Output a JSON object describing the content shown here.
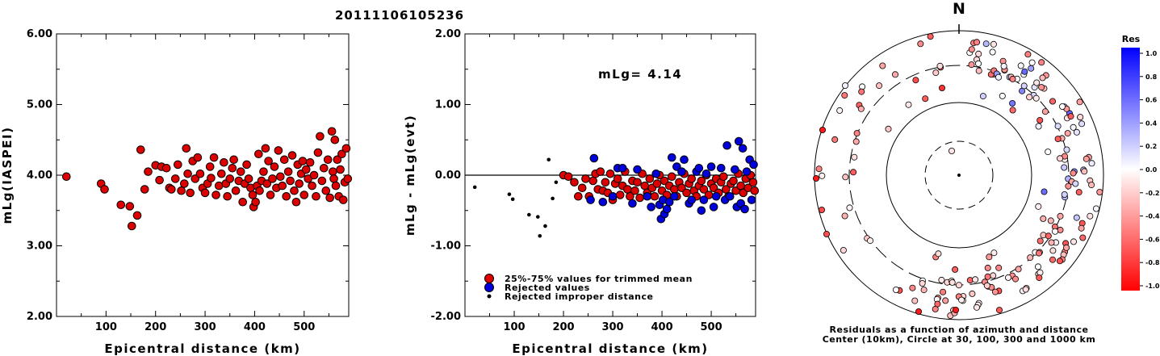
{
  "title": "20111106105236",
  "left_panel": {
    "ylabel": "mLg(IASPEI)",
    "xlabel": "Epicentral distance (km)",
    "yticks": [
      "2.00",
      "3.00",
      "4.00",
      "5.00",
      "6.00"
    ],
    "xticks": [
      "100",
      "200",
      "300",
      "400",
      "500"
    ]
  },
  "middle_panel": {
    "ylabel": "mLg - mLg(evt)",
    "xlabel": "Epicentral distance (km)",
    "yticks": [
      "-2.00",
      "-1.00",
      "0.00",
      "1.00",
      "2.00"
    ],
    "xticks": [
      "100",
      "200",
      "300",
      "400",
      "500"
    ],
    "annotation": "mLg= 4.14",
    "legend": [
      {
        "label": "25%-75% values for trimmed mean",
        "color": "#dd0000"
      },
      {
        "label": "Rejected values",
        "color": "#0000dd"
      },
      {
        "label": "Rejected improper distance",
        "color": "#000000"
      }
    ]
  },
  "polar_panel": {
    "north_label": "N",
    "caption_line1": "Residuals as a function of azimuth and distance",
    "caption_line2": "Center (10km), Circle at 30, 100, 300 and 1000 km"
  },
  "colorbar": {
    "title": "Res",
    "ticks": [
      "1.0",
      "0.8",
      "0.6",
      "0.4",
      "0.2",
      "0.0",
      "-0.2",
      "-0.4",
      "-0.6",
      "-0.8",
      "-1.0"
    ]
  },
  "colors": {
    "red": "#dd0000",
    "blue": "#0000dd",
    "black": "#000000"
  },
  "chart_data": [
    {
      "type": "scatter",
      "xlabel": "Epicentral distance (km)",
      "ylabel": "mLg(IASPEI)",
      "xlim": [
        0,
        590
      ],
      "ylim": [
        2.0,
        6.0
      ],
      "series": [
        {
          "name": "accepted",
          "color": "#dd0000",
          "points": [
            [
              20,
              3.98
            ],
            [
              90,
              3.88
            ],
            [
              97,
              3.8
            ],
            [
              130,
              3.58
            ],
            [
              148,
              3.56
            ],
            [
              152,
              3.28
            ],
            [
              163,
              3.43
            ],
            [
              170,
              4.36
            ],
            [
              178,
              3.8
            ],
            [
              185,
              4.05
            ],
            [
              200,
              4.14
            ],
            [
              208,
              3.93
            ],
            [
              212,
              4.12
            ],
            [
              222,
              4.1
            ],
            [
              228,
              3.82
            ],
            [
              232,
              3.8
            ],
            [
              240,
              3.95
            ],
            [
              245,
              4.15
            ],
            [
              252,
              3.78
            ],
            [
              258,
              3.88
            ],
            [
              262,
              4.38
            ],
            [
              265,
              4.02
            ],
            [
              270,
              3.75
            ],
            [
              275,
              4.2
            ],
            [
              280,
              3.95
            ],
            [
              285,
              4.25
            ],
            [
              290,
              4.02
            ],
            [
              295,
              3.82
            ],
            [
              300,
              3.75
            ],
            [
              305,
              3.88
            ],
            [
              310,
              4.12
            ],
            [
              312,
              3.96
            ],
            [
              318,
              4.25
            ],
            [
              322,
              3.72
            ],
            [
              328,
              3.85
            ],
            [
              333,
              4.02
            ],
            [
              338,
              4.18
            ],
            [
              342,
              3.88
            ],
            [
              345,
              3.7
            ],
            [
              350,
              3.95
            ],
            [
              355,
              4.1
            ],
            [
              358,
              4.22
            ],
            [
              362,
              3.78
            ],
            [
              368,
              3.92
            ],
            [
              372,
              4.05
            ],
            [
              376,
              3.62
            ],
            [
              380,
              3.88
            ],
            [
              384,
              4.15
            ],
            [
              388,
              3.95
            ],
            [
              392,
              3.82
            ],
            [
              396,
              3.72
            ],
            [
              398,
              3.55
            ],
            [
              402,
              3.62
            ],
            [
              405,
              3.85
            ],
            [
              408,
              4.3
            ],
            [
              410,
              3.78
            ],
            [
              414,
              3.92
            ],
            [
              418,
              4.05
            ],
            [
              422,
              4.38
            ],
            [
              425,
              3.88
            ],
            [
              428,
              4.2
            ],
            [
              432,
              3.72
            ],
            [
              436,
              3.95
            ],
            [
              440,
              4.12
            ],
            [
              444,
              3.82
            ],
            [
              448,
              4.35
            ],
            [
              452,
              3.98
            ],
            [
              456,
              3.85
            ],
            [
              460,
              4.22
            ],
            [
              464,
              3.7
            ],
            [
              468,
              4.05
            ],
            [
              472,
              3.92
            ],
            [
              476,
              4.28
            ],
            [
              480,
              3.78
            ],
            [
              484,
              3.62
            ],
            [
              487,
              4.15
            ],
            [
              490,
              3.88
            ],
            [
              494,
              4.02
            ],
            [
              497,
              4.2
            ],
            [
              500,
              3.72
            ],
            [
              504,
              4.08
            ],
            [
              508,
              3.95
            ],
            [
              512,
              4.18
            ],
            [
              516,
              3.85
            ],
            [
              520,
              4.0
            ],
            [
              524,
              3.7
            ],
            [
              528,
              4.32
            ],
            [
              532,
              4.55
            ],
            [
              536,
              3.92
            ],
            [
              540,
              4.1
            ],
            [
              544,
              3.78
            ],
            [
              548,
              4.22
            ],
            [
              552,
              3.68
            ],
            [
              556,
              4.62
            ],
            [
              558,
              4.05
            ],
            [
              560,
              3.95
            ],
            [
              562,
              4.5
            ],
            [
              564,
              3.85
            ],
            [
              567,
              4.22
            ],
            [
              570,
              3.7
            ],
            [
              573,
              4.08
            ],
            [
              576,
              4.3
            ],
            [
              579,
              3.65
            ],
            [
              582,
              3.9
            ],
            [
              585,
              4.38
            ],
            [
              588,
              3.95
            ]
          ]
        }
      ]
    },
    {
      "type": "scatter",
      "xlabel": "Epicentral distance (km)",
      "ylabel": "mLg - mLg(evt)",
      "xlim": [
        0,
        590
      ],
      "ylim": [
        -2.0,
        2.0
      ],
      "series": [
        {
          "name": "25%-75% values for trimmed mean",
          "color": "#dd0000",
          "points": [
            [
              200,
              0.0
            ],
            [
              210,
              -0.02
            ],
            [
              222,
              -0.1
            ],
            [
              230,
              -0.3
            ],
            [
              238,
              -0.18
            ],
            [
              245,
              -0.05
            ],
            [
              252,
              -0.3
            ],
            [
              260,
              -0.08
            ],
            [
              265,
              0.02
            ],
            [
              270,
              -0.2
            ],
            [
              275,
              0.05
            ],
            [
              280,
              -0.22
            ],
            [
              285,
              -0.1
            ],
            [
              290,
              -0.25
            ],
            [
              295,
              0.02
            ],
            [
              300,
              -0.35
            ],
            [
              305,
              -0.12
            ],
            [
              310,
              -0.05
            ],
            [
              315,
              -0.28
            ],
            [
              320,
              -0.15
            ],
            [
              325,
              0.05
            ],
            [
              330,
              -0.2
            ],
            [
              335,
              -0.3
            ],
            [
              340,
              -0.08
            ],
            [
              345,
              -0.22
            ],
            [
              350,
              -0.1
            ],
            [
              355,
              -0.32
            ],
            [
              360,
              0.02
            ],
            [
              365,
              -0.15
            ],
            [
              370,
              -0.25
            ],
            [
              375,
              -0.05
            ],
            [
              380,
              -0.18
            ],
            [
              385,
              -0.3
            ],
            [
              390,
              -0.12
            ],
            [
              395,
              0.0
            ],
            [
              400,
              -0.22
            ],
            [
              405,
              -0.08
            ],
            [
              410,
              -0.28
            ],
            [
              415,
              -0.15
            ],
            [
              420,
              -0.02
            ],
            [
              425,
              -0.2
            ],
            [
              430,
              -0.3
            ],
            [
              435,
              -0.1
            ],
            [
              440,
              -0.18
            ],
            [
              445,
              0.02
            ],
            [
              450,
              -0.25
            ],
            [
              455,
              -0.12
            ],
            [
              460,
              -0.05
            ],
            [
              465,
              -0.22
            ],
            [
              470,
              -0.3
            ],
            [
              475,
              -0.15
            ],
            [
              480,
              -0.08
            ],
            [
              485,
              -0.2
            ],
            [
              490,
              0.0
            ],
            [
              495,
              -0.28
            ],
            [
              500,
              -0.12
            ],
            [
              505,
              -0.18
            ],
            [
              510,
              -0.05
            ],
            [
              515,
              -0.25
            ],
            [
              520,
              -0.1
            ],
            [
              525,
              -0.02
            ],
            [
              530,
              -0.2
            ],
            [
              535,
              -0.3
            ],
            [
              540,
              -0.12
            ],
            [
              545,
              -0.08
            ],
            [
              550,
              -0.22
            ],
            [
              555,
              0.02
            ],
            [
              560,
              -0.15
            ],
            [
              565,
              -0.25
            ],
            [
              570,
              -0.05
            ],
            [
              575,
              -0.18
            ],
            [
              580,
              0.0
            ],
            [
              585,
              -0.1
            ],
            [
              588,
              -0.22
            ]
          ]
        },
        {
          "name": "Rejected values",
          "color": "#0000dd",
          "points": [
            [
              262,
              0.24
            ],
            [
              255,
              -0.35
            ],
            [
              280,
              -0.38
            ],
            [
              300,
              -0.3
            ],
            [
              310,
              0.1
            ],
            [
              320,
              0.1
            ],
            [
              340,
              -0.4
            ],
            [
              350,
              0.08
            ],
            [
              370,
              -0.3
            ],
            [
              378,
              -0.45
            ],
            [
              388,
              0.02
            ],
            [
              395,
              -0.42
            ],
            [
              398,
              -0.62
            ],
            [
              402,
              -0.35
            ],
            [
              405,
              -0.55
            ],
            [
              410,
              -0.48
            ],
            [
              415,
              -0.38
            ],
            [
              420,
              0.25
            ],
            [
              425,
              -0.3
            ],
            [
              430,
              0.12
            ],
            [
              440,
              0.05
            ],
            [
              445,
              0.22
            ],
            [
              455,
              -0.4
            ],
            [
              460,
              -0.35
            ],
            [
              470,
              0.05
            ],
            [
              475,
              0.1
            ],
            [
              480,
              -0.5
            ],
            [
              485,
              -0.35
            ],
            [
              490,
              0.02
            ],
            [
              500,
              0.12
            ],
            [
              505,
              -0.45
            ],
            [
              510,
              -0.3
            ],
            [
              520,
              0.1
            ],
            [
              528,
              -0.35
            ],
            [
              532,
              0.42
            ],
            [
              538,
              -0.3
            ],
            [
              548,
              0.08
            ],
            [
              552,
              -0.45
            ],
            [
              556,
              0.48
            ],
            [
              560,
              -0.4
            ],
            [
              564,
              0.38
            ],
            [
              568,
              -0.48
            ],
            [
              572,
              0.05
            ],
            [
              578,
              0.22
            ],
            [
              582,
              -0.35
            ],
            [
              586,
              0.15
            ]
          ]
        },
        {
          "name": "Rejected improper distance",
          "color": "#000000",
          "points": [
            [
              20,
              -0.17
            ],
            [
              90,
              -0.27
            ],
            [
              97,
              -0.34
            ],
            [
              130,
              -0.56
            ],
            [
              148,
              -0.59
            ],
            [
              152,
              -0.86
            ],
            [
              163,
              -0.72
            ],
            [
              170,
              0.22
            ],
            [
              178,
              -0.33
            ],
            [
              185,
              -0.1
            ]
          ]
        }
      ]
    }
  ]
}
